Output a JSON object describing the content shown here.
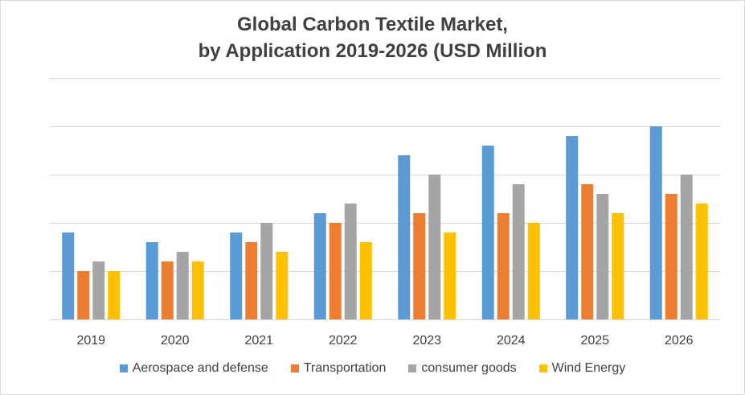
{
  "chart_data": {
    "type": "bar",
    "title_lines": [
      "Global Carbon Textile Market,",
      "by Application 2019-2026 (USD Million"
    ],
    "xlabel": "",
    "ylabel": "",
    "categories": [
      "2019",
      "2020",
      "2021",
      "2022",
      "2023",
      "2024",
      "2025",
      "2026"
    ],
    "series": [
      {
        "name": "Aerospace and defense",
        "color": "#5b9bd5",
        "values": [
          9,
          8,
          9,
          11,
          17,
          18,
          19,
          20
        ]
      },
      {
        "name": "Transportation",
        "color": "#ed7d31",
        "values": [
          5,
          6,
          8,
          10,
          11,
          11,
          14,
          13
        ]
      },
      {
        "name": "consumer goods",
        "color": "#a5a5a5",
        "values": [
          6,
          7,
          10,
          12,
          15,
          14,
          13,
          15
        ]
      },
      {
        "name": "Wind Energy",
        "color": "#ffc000",
        "values": [
          5,
          6,
          7,
          8,
          9,
          10,
          11,
          12
        ]
      }
    ],
    "ylim": [
      0,
      25
    ],
    "gridlines": [
      5,
      10,
      15,
      20,
      25
    ],
    "y_tick_labels_shown": false,
    "grid": true,
    "legend_position": "bottom"
  }
}
